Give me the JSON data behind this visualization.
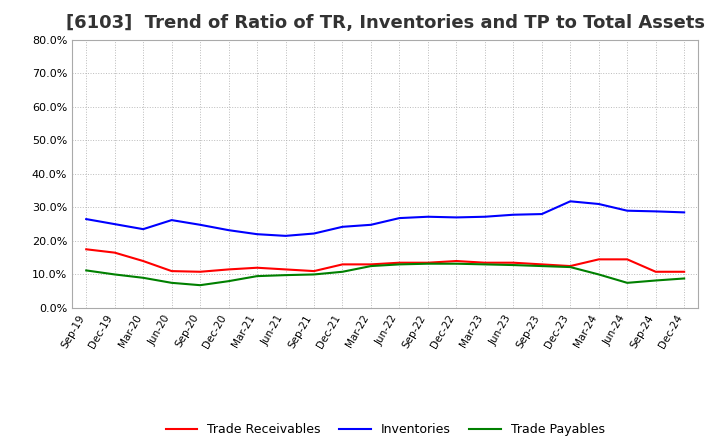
{
  "title": "[6103]  Trend of Ratio of TR, Inventories and TP to Total Assets",
  "x_labels": [
    "Sep-19",
    "Dec-19",
    "Mar-20",
    "Jun-20",
    "Sep-20",
    "Dec-20",
    "Mar-21",
    "Jun-21",
    "Sep-21",
    "Dec-21",
    "Mar-22",
    "Jun-22",
    "Sep-22",
    "Dec-22",
    "Mar-23",
    "Jun-23",
    "Sep-23",
    "Dec-23",
    "Mar-24",
    "Jun-24",
    "Sep-24",
    "Dec-24"
  ],
  "trade_receivables": [
    0.175,
    0.165,
    0.14,
    0.11,
    0.108,
    0.115,
    0.12,
    0.115,
    0.11,
    0.13,
    0.13,
    0.135,
    0.135,
    0.14,
    0.135,
    0.135,
    0.13,
    0.125,
    0.145,
    0.145,
    0.108,
    0.108
  ],
  "inventories": [
    0.265,
    0.25,
    0.235,
    0.262,
    0.248,
    0.232,
    0.22,
    0.215,
    0.222,
    0.242,
    0.248,
    0.268,
    0.272,
    0.27,
    0.272,
    0.278,
    0.28,
    0.318,
    0.31,
    0.29,
    0.288,
    0.285
  ],
  "trade_payables": [
    0.112,
    0.1,
    0.09,
    0.075,
    0.068,
    0.08,
    0.095,
    0.098,
    0.1,
    0.108,
    0.125,
    0.13,
    0.132,
    0.132,
    0.13,
    0.128,
    0.125,
    0.122,
    0.1,
    0.075,
    0.082,
    0.088
  ],
  "ylim": [
    0.0,
    0.8
  ],
  "yticks": [
    0.0,
    0.1,
    0.2,
    0.3,
    0.4,
    0.5,
    0.6,
    0.7,
    0.8
  ],
  "line_colors": {
    "trade_receivables": "#FF0000",
    "inventories": "#0000FF",
    "trade_payables": "#008000"
  },
  "background_color": "#FFFFFF",
  "grid_color": "#AAAAAA",
  "legend_labels": [
    "Trade Receivables",
    "Inventories",
    "Trade Payables"
  ],
  "title_fontsize": 13,
  "title_color": "#333333"
}
